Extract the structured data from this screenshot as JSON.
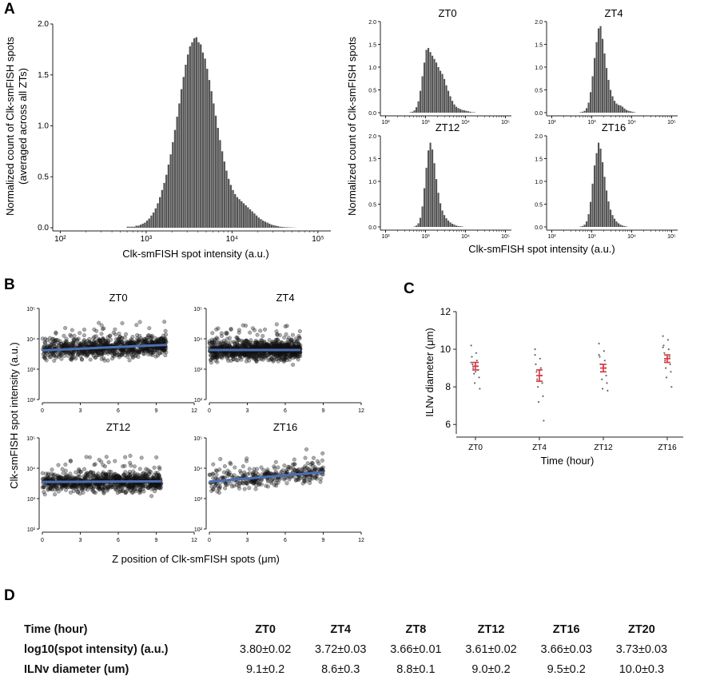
{
  "panel_labels": {
    "a": "A",
    "b": "B",
    "c": "C",
    "d": "D"
  },
  "colors": {
    "bar": "#555555",
    "scatter_point": "#111111",
    "fit_line": "#4a6fb5",
    "error_bar": "#e0303a",
    "axis": "#222222"
  },
  "chart_data": [
    {
      "id": "A-left",
      "type": "bar",
      "title": "",
      "xlabel": "Clk-smFISH spot intensity (a.u.)",
      "ylabel_lines": [
        "Normalized count of Clk-smFISH spots",
        "(averaged across all ZTs)"
      ],
      "xscale": "log10",
      "xlim_log10": [
        1.95,
        5.15
      ],
      "ylim": [
        0,
        2.0
      ],
      "xticks": [
        "10²",
        "10³",
        "10⁴",
        "10⁵"
      ],
      "yticks": [
        "0.0",
        "0.5",
        "1.0",
        "1.5",
        "2.0"
      ],
      "bins_log10_start": 2.0,
      "bin_width_log10": 0.025,
      "values": [
        0,
        0,
        0,
        0,
        0,
        0,
        0,
        0,
        0,
        0,
        0,
        0,
        0,
        0,
        0,
        0,
        0,
        0,
        0,
        0,
        0,
        0,
        0,
        0,
        0,
        0,
        0,
        0,
        0,
        0,
        0,
        0.01,
        0.01,
        0.01,
        0.01,
        0.02,
        0.02,
        0.03,
        0.04,
        0.05,
        0.07,
        0.09,
        0.12,
        0.15,
        0.19,
        0.24,
        0.3,
        0.37,
        0.44,
        0.52,
        0.62,
        0.72,
        0.84,
        0.96,
        1.09,
        1.22,
        1.36,
        1.48,
        1.6,
        1.7,
        1.78,
        1.82,
        1.86,
        1.87,
        1.82,
        1.8,
        1.72,
        1.66,
        1.56,
        1.45,
        1.34,
        1.22,
        1.1,
        0.98,
        0.86,
        0.75,
        0.65,
        0.56,
        0.48,
        0.42,
        0.37,
        0.33,
        0.3,
        0.28,
        0.26,
        0.24,
        0.22,
        0.2,
        0.18,
        0.16,
        0.14,
        0.12,
        0.1,
        0.085,
        0.07,
        0.06,
        0.05,
        0.04,
        0.03,
        0.025,
        0.02,
        0.015,
        0.01,
        0.008,
        0.006,
        0.005,
        0.004,
        0.003,
        0.002,
        0.001,
        0
      ]
    },
    {
      "id": "A-ZT0",
      "type": "bar",
      "title": "ZT0",
      "xscale": "log10",
      "xlim_log10": [
        1.95,
        5.15
      ],
      "ylim": [
        0,
        2.0
      ],
      "yticks": [
        "0.0",
        "0.5",
        "1.0",
        "1.5",
        "2.0"
      ],
      "xticks": [
        "10²",
        "10³",
        "10⁴",
        "10⁵"
      ],
      "bins_log10_start": 2.6,
      "bin_width_log10": 0.05,
      "values": [
        0.01,
        0.02,
        0.05,
        0.12,
        0.25,
        0.48,
        0.8,
        1.1,
        1.38,
        1.42,
        1.33,
        1.25,
        1.18,
        1.1,
        1.0,
        0.92,
        0.85,
        0.74,
        0.6,
        0.48,
        0.36,
        0.26,
        0.18,
        0.13,
        0.1,
        0.08,
        0.06,
        0.05,
        0.04,
        0.03,
        0.02,
        0.01,
        0.01
      ]
    },
    {
      "id": "A-ZT4",
      "type": "bar",
      "title": "ZT4",
      "xscale": "log10",
      "xlim_log10": [
        1.95,
        5.15
      ],
      "ylim": [
        0,
        2.0
      ],
      "yticks": [
        "0.0",
        "0.5",
        "1.0",
        "1.5",
        "2.0"
      ],
      "xticks": [
        "10²",
        "10³",
        "10⁴",
        "10⁵"
      ],
      "bins_log10_start": 2.7,
      "bin_width_log10": 0.05,
      "values": [
        0.01,
        0.02,
        0.04,
        0.1,
        0.22,
        0.45,
        0.8,
        1.2,
        1.55,
        1.85,
        1.9,
        1.62,
        1.3,
        0.98,
        0.72,
        0.5,
        0.36,
        0.26,
        0.2,
        0.17,
        0.16,
        0.13,
        0.09,
        0.06,
        0.04,
        0.03,
        0.02,
        0.01
      ]
    },
    {
      "id": "A-ZT12",
      "type": "bar",
      "title": "ZT12",
      "xscale": "log10",
      "xlim_log10": [
        1.95,
        5.15
      ],
      "ylim": [
        0,
        2.0
      ],
      "yticks": [
        "0.0",
        "0.5",
        "1.0",
        "1.5",
        "2.0"
      ],
      "xticks": [
        "10²",
        "10³",
        "10⁴",
        "10⁵"
      ],
      "bins_log10_start": 2.7,
      "bin_width_log10": 0.05,
      "values": [
        0.01,
        0.03,
        0.08,
        0.2,
        0.45,
        0.85,
        1.3,
        1.68,
        1.85,
        1.7,
        1.4,
        1.05,
        0.75,
        0.52,
        0.36,
        0.26,
        0.19,
        0.14,
        0.1,
        0.07,
        0.05,
        0.03,
        0.02,
        0.015,
        0.01
      ]
    },
    {
      "id": "A-ZT16",
      "type": "bar",
      "title": "ZT16",
      "xscale": "log10",
      "xlim_log10": [
        1.95,
        5.15
      ],
      "ylim": [
        0,
        2.0
      ],
      "yticks": [
        "0.0",
        "0.5",
        "1.0",
        "1.5",
        "2.0"
      ],
      "xticks": [
        "10²",
        "10³",
        "10⁴",
        "10⁵"
      ],
      "bins_log10_start": 2.7,
      "bin_width_log10": 0.05,
      "values": [
        0.01,
        0.02,
        0.05,
        0.12,
        0.28,
        0.55,
        0.95,
        1.35,
        1.62,
        1.85,
        1.72,
        1.42,
        1.1,
        0.8,
        0.56,
        0.38,
        0.26,
        0.18,
        0.12,
        0.08,
        0.05,
        0.03,
        0.02,
        0.01
      ]
    },
    {
      "id": "B",
      "type": "scatter",
      "xlabel": "Z position of Clk-smFISH spots (μm)",
      "ylabel": "Clk-smFISH spot intensity (a.u.)",
      "xlim": [
        0,
        12
      ],
      "ylim_log10": [
        2,
        5
      ],
      "xticks": [
        "0",
        "3",
        "6",
        "9",
        "12"
      ],
      "yticks": [
        "10²",
        "10³",
        "10⁴",
        "10⁵"
      ],
      "panels": [
        {
          "title": "ZT0",
          "n_points": 900,
          "zmax": 9.8,
          "fit": [
            [
              0,
              3.62
            ],
            [
              9.8,
              3.8
            ]
          ]
        },
        {
          "title": "ZT4",
          "n_points": 1000,
          "zmax": 7.2,
          "fit": [
            [
              0,
              3.63
            ],
            [
              7.2,
              3.63
            ]
          ]
        },
        {
          "title": "ZT12",
          "n_points": 900,
          "zmax": 9.4,
          "fit": [
            [
              0,
              3.55
            ],
            [
              9.4,
              3.57
            ]
          ]
        },
        {
          "title": "ZT16",
          "n_points": 350,
          "zmax": 9.0,
          "fit": [
            [
              0,
              3.56
            ],
            [
              9.0,
              3.87
            ]
          ]
        }
      ]
    },
    {
      "id": "C",
      "type": "scatter",
      "xlabel": "Time (hour)",
      "ylabel": "ILNv diameter (μm)",
      "categories": [
        "ZT0",
        "ZT4",
        "ZT12",
        "ZT16"
      ],
      "ylim": [
        5.5,
        12
      ],
      "yticks": [
        "6",
        "8",
        "10",
        "12"
      ],
      "means": [
        9.1,
        8.6,
        9.0,
        9.5
      ],
      "errors": [
        0.2,
        0.3,
        0.2,
        0.2
      ],
      "points": [
        [
          10.2,
          9.8,
          9.6,
          9.4,
          9.2,
          9.1,
          9.0,
          8.9,
          8.7,
          8.5,
          8.2,
          7.9,
          8.8,
          9.3
        ],
        [
          10.0,
          9.5,
          9.2,
          9.0,
          8.8,
          8.6,
          8.4,
          8.2,
          8.0,
          7.5,
          7.2,
          6.2,
          8.9,
          9.7
        ],
        [
          10.3,
          9.9,
          9.6,
          9.4,
          9.2,
          9.0,
          8.8,
          8.6,
          8.4,
          8.2,
          7.9,
          7.8,
          9.1,
          9.7
        ],
        [
          10.7,
          10.5,
          10.2,
          10.0,
          9.8,
          9.6,
          9.4,
          9.2,
          9.0,
          8.8,
          8.5,
          8.0,
          9.5,
          10.1
        ]
      ]
    }
  ],
  "table": {
    "header": [
      "Time (hour)",
      "ZT0",
      "ZT4",
      "ZT8",
      "ZT12",
      "ZT16",
      "ZT20"
    ],
    "rows": [
      {
        "label": "log10(spot intensity) (a.u.)",
        "cells": [
          "3.80±0.02",
          "3.72±0.03",
          "3.66±0.01",
          "3.61±0.02",
          "3.66±0.03",
          "3.73±0.03"
        ]
      },
      {
        "label": "ILNv diameter (um)",
        "cells": [
          "9.1±0.2",
          "8.6±0.3",
          "8.8±0.1",
          "9.0±0.2",
          "9.5±0.2",
          "10.0±0.3"
        ]
      }
    ]
  }
}
